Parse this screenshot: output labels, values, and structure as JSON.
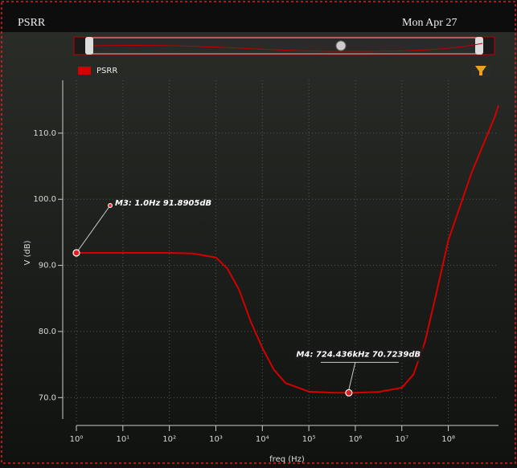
{
  "chart_data": {
    "type": "line",
    "title": "PSRR",
    "timestamp": "Mon Apr 27",
    "x_label": "freq (Hz)",
    "y_label": "V (dB)",
    "x_log": true,
    "grid": true,
    "xlim": [
      1,
      1200000000
    ],
    "ylim": [
      67,
      118
    ],
    "xticks": [
      {
        "value": 1,
        "label": "10⁰"
      },
      {
        "value": 10,
        "label": "10¹"
      },
      {
        "value": 100,
        "label": "10²"
      },
      {
        "value": 1000,
        "label": "10³"
      },
      {
        "value": 10000,
        "label": "10⁴"
      },
      {
        "value": 100000,
        "label": "10⁵"
      },
      {
        "value": 1000000,
        "label": "10⁶"
      },
      {
        "value": 10000000,
        "label": "10⁷"
      },
      {
        "value": 100000000,
        "label": "10⁸"
      }
    ],
    "yticks": [
      {
        "value": 70,
        "label": "70.0"
      },
      {
        "value": 80,
        "label": "80.0"
      },
      {
        "value": 90,
        "label": "90.0"
      },
      {
        "value": 100,
        "label": "100.0"
      },
      {
        "value": 110,
        "label": "110.0"
      }
    ],
    "x": [
      1,
      10,
      100,
      316,
      1000,
      1778,
      3162,
      5623,
      10000,
      17783,
      31623,
      100000,
      316228,
      724436,
      1000000,
      3162278,
      10000000,
      17782794,
      31622777,
      56234133,
      100000000,
      316227766,
      1000000000,
      1200000000
    ],
    "series": [
      {
        "name": "PSRR",
        "color": "#d40000",
        "values": [
          91.89,
          91.89,
          91.89,
          91.8,
          91.2,
          89.5,
          86.3,
          81.5,
          77.5,
          74.2,
          72.2,
          70.9,
          70.75,
          70.72,
          70.73,
          70.85,
          71.5,
          73.5,
          78.5,
          86,
          93.8,
          104,
          112.5,
          114.2
        ]
      }
    ],
    "markers": [
      {
        "label": "M3: 1.0Hz 91.8905dB",
        "x": 1,
        "y": 91.8905
      },
      {
        "label": "M4: 724.436kHz 70.7239dB",
        "x": 724436,
        "y": 70.7239
      }
    ]
  }
}
